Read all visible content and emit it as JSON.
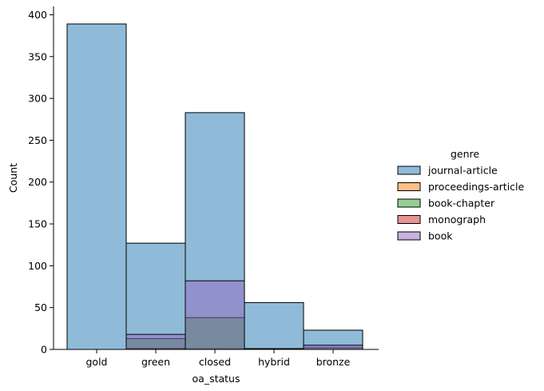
{
  "chart_data": {
    "type": "bar",
    "title": "",
    "xlabel": "oa_status",
    "ylabel": "Count",
    "categories": [
      "gold",
      "green",
      "closed",
      "hybrid",
      "bronze"
    ],
    "ylim": [
      0,
      410
    ],
    "yticks": [
      0,
      50,
      100,
      150,
      200,
      250,
      300,
      350,
      400
    ],
    "grid": false,
    "legend_title": "genre",
    "legend_position": "right",
    "series": [
      {
        "name": "journal-article",
        "color": "#1f77b4",
        "values": [
          389,
          127,
          283,
          56,
          23
        ]
      },
      {
        "name": "proceedings-article",
        "color": "#ff7f0e",
        "values": [
          0,
          1,
          1,
          0,
          0
        ]
      },
      {
        "name": "book-chapter",
        "color": "#2ca02c",
        "values": [
          0,
          13,
          38,
          0,
          2
        ]
      },
      {
        "name": "monograph",
        "color": "#d62728",
        "values": [
          0,
          1,
          0,
          1,
          0
        ]
      },
      {
        "name": "book",
        "color": "#9467bd",
        "values": [
          0,
          18,
          82,
          0,
          5
        ]
      }
    ]
  }
}
